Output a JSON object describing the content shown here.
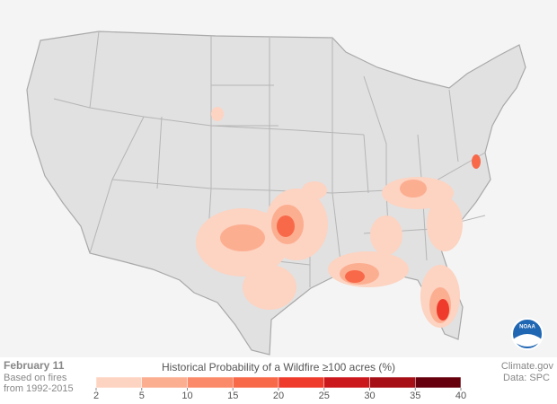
{
  "date": "February 11",
  "note": [
    "Based on fires",
    "from 1992-2015"
  ],
  "legend": {
    "title": "Historical Probability of a Wildfire ≥100 acres (%)",
    "ticks": [
      2,
      5,
      10,
      15,
      20,
      25,
      30,
      35,
      40
    ],
    "colors": [
      "#fdd3c1",
      "#fcae91",
      "#fb8a6a",
      "#f8694a",
      "#ef3b2c",
      "#cb181d",
      "#a50f15",
      "#67000d"
    ]
  },
  "credits": [
    "Climate.gov",
    "Data: SPC"
  ],
  "logo": "NOAA"
}
